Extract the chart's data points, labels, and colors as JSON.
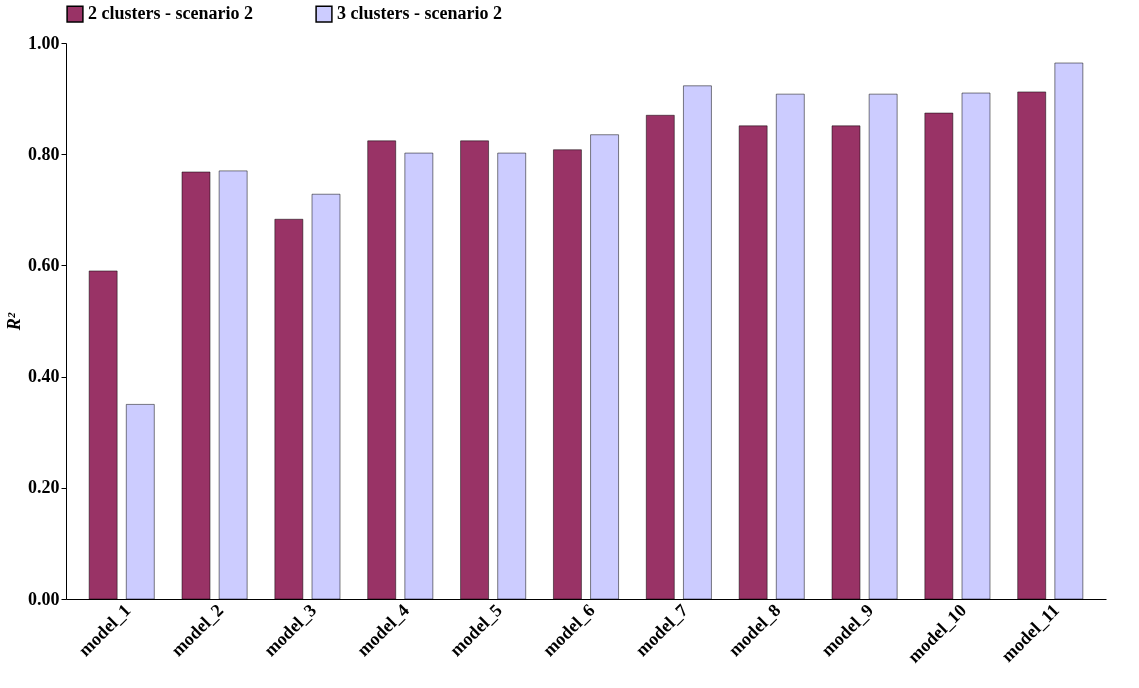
{
  "chart_data": {
    "type": "bar",
    "ylabel": "R²",
    "categories": [
      "model_1",
      "model_2",
      "model_3",
      "model_4",
      "model_5",
      "model_6",
      "model_7",
      "model_8",
      "model_9",
      "model_10",
      "model_11"
    ],
    "series": [
      {
        "name": "2 clusters - scenario 2",
        "color": "#993366",
        "values": [
          0.59,
          0.768,
          0.683,
          0.824,
          0.824,
          0.808,
          0.87,
          0.851,
          0.851,
          0.874,
          0.912
        ]
      },
      {
        "name": "3 clusters - scenario 2",
        "color": "#ccccff",
        "values": [
          0.35,
          0.77,
          0.728,
          0.802,
          0.802,
          0.835,
          0.923,
          0.908,
          0.908,
          0.91,
          0.964
        ]
      }
    ],
    "ylim": [
      0,
      1
    ],
    "yticks": [
      {
        "value": 0,
        "label": "0.00"
      },
      {
        "value": 0.2,
        "label": "0.20"
      },
      {
        "value": 0.4,
        "label": "0.40"
      },
      {
        "value": 0.6,
        "label": "0.60"
      },
      {
        "value": 0.8,
        "label": "0.80"
      },
      {
        "value": 1,
        "label": "1.00"
      }
    ],
    "grid": false,
    "legend": "top"
  }
}
